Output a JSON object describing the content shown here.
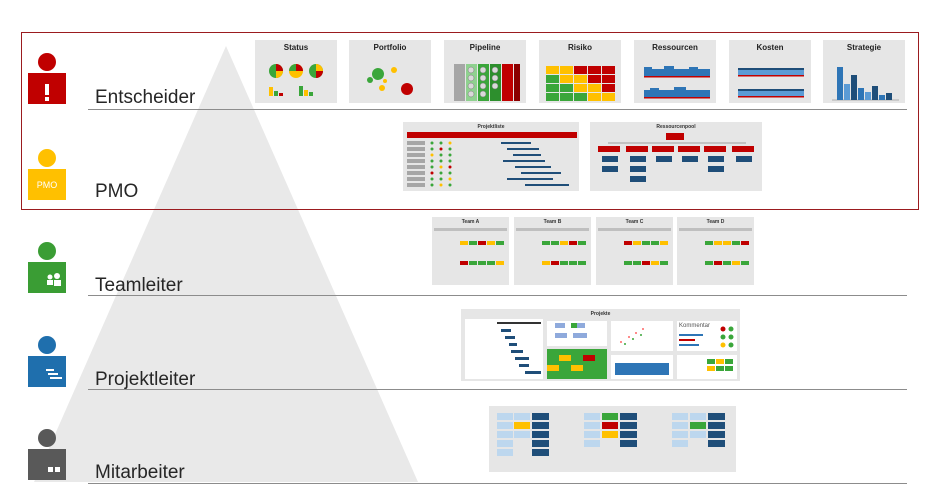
{
  "levels": [
    {
      "label": "Entscheider",
      "color": "#c00000"
    },
    {
      "label": "PMO",
      "color": "#ffc000",
      "badge": "PMO"
    },
    {
      "label": "Teamleiter",
      "color": "#3a9d34"
    },
    {
      "label": "Projektleiter",
      "color": "#1f6fad"
    },
    {
      "label": "Mitarbeiter",
      "color": "#595959"
    }
  ],
  "dashboards": {
    "entscheider": [
      "Status",
      "Portfolio",
      "Pipeline",
      "Risiko",
      "Ressourcen",
      "Kosten",
      "Strategie"
    ],
    "pmo": [
      "Projektliste",
      "Ressourcenpool"
    ],
    "teamleiter": [
      "Team A",
      "Team B",
      "Team C",
      "Team D"
    ],
    "projektleiter": {
      "title": "Projekte",
      "kommentar": "Kommentar"
    }
  },
  "colors": {
    "frame": "#9b1b1f",
    "pyramid": "#e9e9e9",
    "red": "#c00000",
    "green": "#3aa63a",
    "yellow": "#ffc000",
    "blue": "#2e75b6",
    "lightblue": "#bdd7ee",
    "darkblue": "#1f4e79"
  }
}
